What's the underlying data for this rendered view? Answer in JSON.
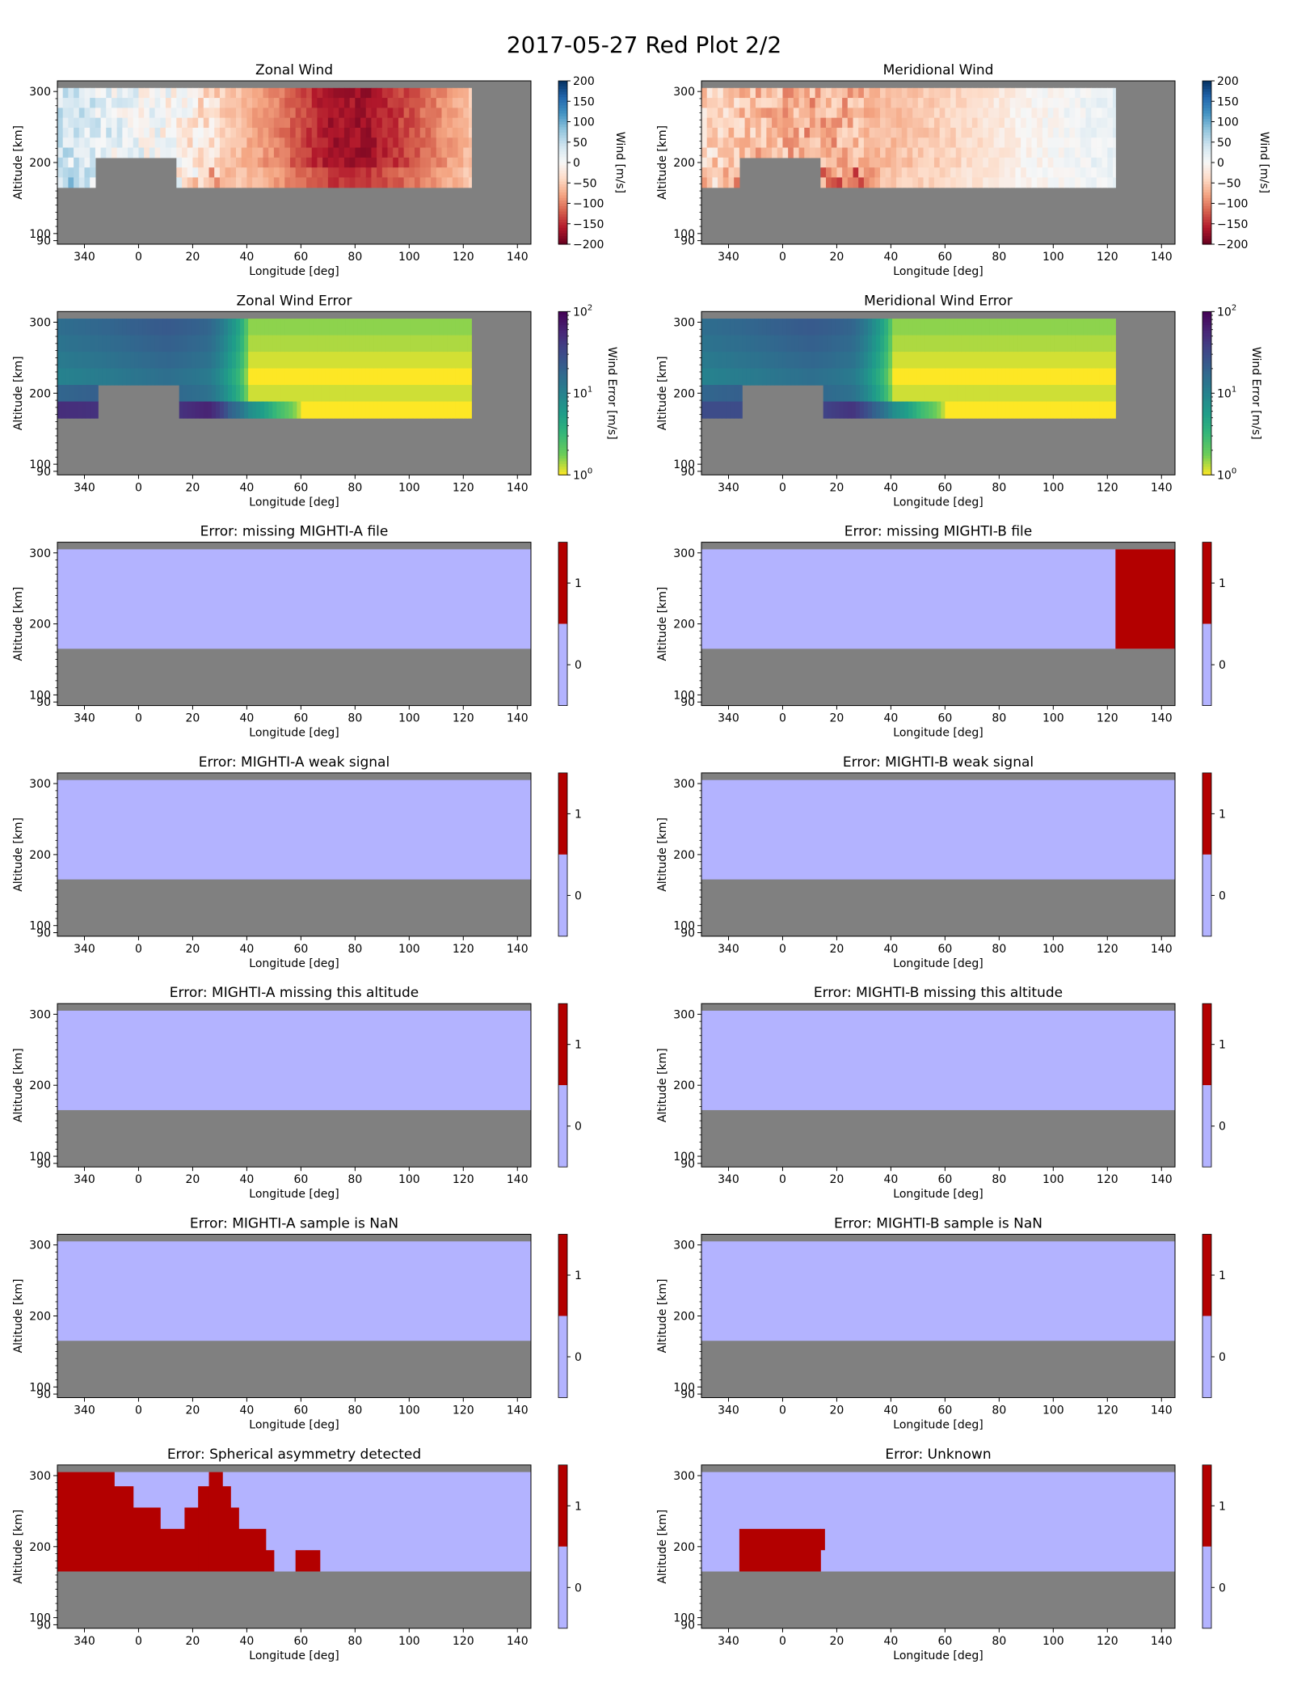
{
  "figure": {
    "title": "2017-05-27 Red Plot 2/2",
    "colors": {
      "background_gray": "#808080",
      "flag_off": "#b3b3ff",
      "flag_on": "#b30000",
      "wind_neg_extreme": "#67001f",
      "wind_pos_extreme": "#053061",
      "error_low": "#fde725",
      "error_high": "#440154"
    }
  },
  "chart_data": [
    {
      "type": "heatmap",
      "title": "Zonal Wind",
      "xlabel": "Longitude [deg]",
      "ylabel": "Altitude [km]",
      "x_ticks": [
        "340",
        "0",
        "20",
        "40",
        "60",
        "80",
        "100",
        "120",
        "140"
      ],
      "y_ticks": [
        "300",
        "200",
        "100",
        "90"
      ],
      "xlim": [
        -30,
        145
      ],
      "ylim": [
        85,
        315
      ],
      "colorbar": {
        "label": "Wind [m/s]",
        "ticks": [
          "200",
          "150",
          "100",
          "50",
          "0",
          "−50",
          "−100",
          "−150",
          "−200"
        ],
        "range": [
          -200,
          200
        ],
        "colormap": "RdBu"
      },
      "data_region": {
        "lon": [
          -30,
          123
        ],
        "alt": [
          165,
          305
        ],
        "gap_lon": [
          -16,
          14
        ],
        "gap_alt_below": 220
      },
      "values_by_lon": {
        "lon": [
          -30,
          -10,
          10,
          30,
          50,
          70,
          85,
          100,
          115,
          123
        ],
        "wind": [
          40,
          20,
          0,
          -45,
          -95,
          -165,
          -170,
          -130,
          -85,
          -60
        ]
      },
      "alt_bins": [
        295,
        280,
        265,
        250,
        235,
        220,
        205,
        190,
        175,
        165
      ]
    },
    {
      "type": "heatmap",
      "title": "Meridional Wind",
      "xlabel": "Longitude [deg]",
      "ylabel": "Altitude [km]",
      "x_ticks": [
        "340",
        "0",
        "20",
        "40",
        "60",
        "80",
        "100",
        "120",
        "140"
      ],
      "y_ticks": [
        "300",
        "200",
        "100",
        "90"
      ],
      "xlim": [
        -30,
        145
      ],
      "ylim": [
        85,
        315
      ],
      "colorbar": {
        "label": "Wind [m/s]",
        "ticks": [
          "200",
          "150",
          "100",
          "50",
          "0",
          "−50",
          "−100",
          "−150",
          "−200"
        ],
        "range": [
          -200,
          200
        ],
        "colormap": "RdBu"
      },
      "data_region": {
        "lon": [
          -30,
          123
        ],
        "alt": [
          165,
          305
        ],
        "gap_lon": [
          -16,
          14
        ],
        "gap_alt_below": 220
      },
      "values_by_lon": {
        "lon": [
          -30,
          -10,
          10,
          30,
          50,
          70,
          85,
          100,
          115,
          123
        ],
        "wind": [
          -40,
          -60,
          -75,
          -70,
          -55,
          -35,
          -15,
          0,
          10,
          15
        ]
      },
      "alt_bins": [
        295,
        280,
        265,
        250,
        235,
        220,
        205,
        190,
        175,
        165
      ]
    },
    {
      "type": "heatmap",
      "title": "Zonal Wind Error",
      "xlabel": "Longitude [deg]",
      "ylabel": "Altitude [km]",
      "x_ticks": [
        "340",
        "0",
        "20",
        "40",
        "60",
        "80",
        "100",
        "120",
        "140"
      ],
      "y_ticks": [
        "300",
        "200",
        "100",
        "90"
      ],
      "xlim": [
        -30,
        145
      ],
      "ylim": [
        85,
        315
      ],
      "colorbar": {
        "label": "Wind Error [m/s]",
        "ticks_log": [
          {
            "base": "10",
            "exp": "2"
          },
          {
            "base": "10",
            "exp": "1"
          },
          {
            "base": "10",
            "exp": "0"
          }
        ],
        "range": [
          1,
          100
        ],
        "scale": "log",
        "colormap": "viridis_r"
      },
      "data_region": {
        "lon": [
          -30,
          123
        ],
        "alt": [
          165,
          305
        ],
        "gap_lon": [
          -16,
          14
        ],
        "gap_alt_below": 220
      },
      "values_by_lon": {
        "lon": [
          -30,
          -10,
          10,
          25,
          33,
          40,
          50,
          60
        ],
        "error_upper": [
          10,
          12,
          15,
          12,
          5,
          1,
          1,
          1
        ],
        "error_lower": [
          50,
          45,
          40,
          60,
          20,
          8,
          3,
          1
        ]
      }
    },
    {
      "type": "heatmap",
      "title": "Meridional Wind Error",
      "xlabel": "Longitude [deg]",
      "ylabel": "Altitude [km]",
      "x_ticks": [
        "340",
        "0",
        "20",
        "40",
        "60",
        "80",
        "100",
        "120",
        "140"
      ],
      "y_ticks": [
        "300",
        "200",
        "100",
        "90"
      ],
      "xlim": [
        -30,
        145
      ],
      "ylim": [
        85,
        315
      ],
      "colorbar": {
        "label": "Wind Error [m/s]",
        "ticks_log": [
          {
            "base": "10",
            "exp": "2"
          },
          {
            "base": "10",
            "exp": "1"
          },
          {
            "base": "10",
            "exp": "0"
          }
        ],
        "range": [
          1,
          100
        ],
        "scale": "log",
        "colormap": "viridis_r"
      },
      "data_region": {
        "lon": [
          -30,
          123
        ],
        "alt": [
          165,
          305
        ],
        "gap_lon": [
          -16,
          14
        ],
        "gap_alt_below": 220
      },
      "values_by_lon": {
        "lon": [
          -30,
          -10,
          10,
          25,
          33,
          40,
          50,
          60
        ],
        "error_upper": [
          10,
          12,
          15,
          12,
          5,
          1,
          1,
          1
        ],
        "error_lower": [
          30,
          30,
          30,
          45,
          20,
          8,
          3,
          1
        ]
      }
    },
    {
      "type": "heatmap",
      "title": "Error: missing MIGHTI-A file",
      "xlabel": "Longitude [deg]",
      "ylabel": "Altitude [km]",
      "x_ticks": [
        "340",
        "0",
        "20",
        "40",
        "60",
        "80",
        "100",
        "120",
        "140"
      ],
      "y_ticks": [
        "300",
        "200",
        "100",
        "90"
      ],
      "xlim": [
        -30,
        145
      ],
      "ylim": [
        85,
        315
      ],
      "colorbar": {
        "ticks": [
          "1",
          "0"
        ],
        "categories": [
          0,
          1
        ]
      },
      "valid_alt": [
        165,
        305
      ],
      "flag_regions": []
    },
    {
      "type": "heatmap",
      "title": "Error: missing MIGHTI-B file",
      "xlabel": "Longitude [deg]",
      "ylabel": "Altitude [km]",
      "x_ticks": [
        "340",
        "0",
        "20",
        "40",
        "60",
        "80",
        "100",
        "120",
        "140"
      ],
      "y_ticks": [
        "300",
        "200",
        "100",
        "90"
      ],
      "xlim": [
        -30,
        145
      ],
      "ylim": [
        85,
        315
      ],
      "colorbar": {
        "ticks": [
          "1",
          "0"
        ],
        "categories": [
          0,
          1
        ]
      },
      "valid_alt": [
        165,
        305
      ],
      "flag_regions": [
        {
          "lon": [
            123,
            145
          ],
          "alt": [
            165,
            305
          ]
        }
      ]
    },
    {
      "type": "heatmap",
      "title": "Error: MIGHTI-A weak signal",
      "xlabel": "Longitude [deg]",
      "ylabel": "Altitude [km]",
      "x_ticks": [
        "340",
        "0",
        "20",
        "40",
        "60",
        "80",
        "100",
        "120",
        "140"
      ],
      "y_ticks": [
        "300",
        "200",
        "100",
        "90"
      ],
      "xlim": [
        -30,
        145
      ],
      "ylim": [
        85,
        315
      ],
      "colorbar": {
        "ticks": [
          "1",
          "0"
        ],
        "categories": [
          0,
          1
        ]
      },
      "valid_alt": [
        165,
        305
      ],
      "flag_regions": []
    },
    {
      "type": "heatmap",
      "title": "Error: MIGHTI-B weak signal",
      "xlabel": "Longitude [deg]",
      "ylabel": "Altitude [km]",
      "x_ticks": [
        "340",
        "0",
        "20",
        "40",
        "60",
        "80",
        "100",
        "120",
        "140"
      ],
      "y_ticks": [
        "300",
        "200",
        "100",
        "90"
      ],
      "xlim": [
        -30,
        145
      ],
      "ylim": [
        85,
        315
      ],
      "colorbar": {
        "ticks": [
          "1",
          "0"
        ],
        "categories": [
          0,
          1
        ]
      },
      "valid_alt": [
        165,
        305
      ],
      "flag_regions": []
    },
    {
      "type": "heatmap",
      "title": "Error: MIGHTI-A missing this altitude",
      "xlabel": "Longitude [deg]",
      "ylabel": "Altitude [km]",
      "x_ticks": [
        "340",
        "0",
        "20",
        "40",
        "60",
        "80",
        "100",
        "120",
        "140"
      ],
      "y_ticks": [
        "300",
        "200",
        "100",
        "90"
      ],
      "xlim": [
        -30,
        145
      ],
      "ylim": [
        85,
        315
      ],
      "colorbar": {
        "ticks": [
          "1",
          "0"
        ],
        "categories": [
          0,
          1
        ]
      },
      "valid_alt": [
        165,
        305
      ],
      "flag_regions": []
    },
    {
      "type": "heatmap",
      "title": "Error: MIGHTI-B missing this altitude",
      "xlabel": "Longitude [deg]",
      "ylabel": "Altitude [km]",
      "x_ticks": [
        "340",
        "0",
        "20",
        "40",
        "60",
        "80",
        "100",
        "120",
        "140"
      ],
      "y_ticks": [
        "300",
        "200",
        "100",
        "90"
      ],
      "xlim": [
        -30,
        145
      ],
      "ylim": [
        85,
        315
      ],
      "colorbar": {
        "ticks": [
          "1",
          "0"
        ],
        "categories": [
          0,
          1
        ]
      },
      "valid_alt": [
        165,
        305
      ],
      "flag_regions": []
    },
    {
      "type": "heatmap",
      "title": "Error: MIGHTI-A sample is NaN",
      "xlabel": "Longitude [deg]",
      "ylabel": "Altitude [km]",
      "x_ticks": [
        "340",
        "0",
        "20",
        "40",
        "60",
        "80",
        "100",
        "120",
        "140"
      ],
      "y_ticks": [
        "300",
        "200",
        "100",
        "90"
      ],
      "xlim": [
        -30,
        145
      ],
      "ylim": [
        85,
        315
      ],
      "colorbar": {
        "ticks": [
          "1",
          "0"
        ],
        "categories": [
          0,
          1
        ]
      },
      "valid_alt": [
        165,
        305
      ],
      "flag_regions": []
    },
    {
      "type": "heatmap",
      "title": "Error: MIGHTI-B sample is NaN",
      "xlabel": "Longitude [deg]",
      "ylabel": "Altitude [km]",
      "x_ticks": [
        "340",
        "0",
        "20",
        "40",
        "60",
        "80",
        "100",
        "120",
        "140"
      ],
      "y_ticks": [
        "300",
        "200",
        "100",
        "90"
      ],
      "xlim": [
        -30,
        145
      ],
      "ylim": [
        85,
        315
      ],
      "colorbar": {
        "ticks": [
          "1",
          "0"
        ],
        "categories": [
          0,
          1
        ]
      },
      "valid_alt": [
        165,
        305
      ],
      "flag_regions": []
    },
    {
      "type": "heatmap",
      "title": "Error: Spherical asymmetry detected",
      "xlabel": "Longitude [deg]",
      "ylabel": "Altitude [km]",
      "x_ticks": [
        "340",
        "0",
        "20",
        "40",
        "60",
        "80",
        "100",
        "120",
        "140"
      ],
      "y_ticks": [
        "300",
        "200",
        "100",
        "90"
      ],
      "xlim": [
        -30,
        145
      ],
      "ylim": [
        85,
        315
      ],
      "colorbar": {
        "ticks": [
          "1",
          "0"
        ],
        "categories": [
          0,
          1
        ]
      },
      "valid_alt": [
        165,
        305
      ],
      "flag_regions": [
        {
          "lon": [
            -30,
            -20
          ],
          "alt": [
            165,
            305
          ]
        },
        {
          "lon": [
            -20,
            -9
          ],
          "alt": [
            165,
            305
          ]
        },
        {
          "lon": [
            -9,
            -2
          ],
          "alt": [
            165,
            285
          ]
        },
        {
          "lon": [
            -2,
            8
          ],
          "alt": [
            165,
            255
          ]
        },
        {
          "lon": [
            8,
            17
          ],
          "alt": [
            165,
            225
          ]
        },
        {
          "lon": [
            17,
            22
          ],
          "alt": [
            165,
            255
          ]
        },
        {
          "lon": [
            22,
            26
          ],
          "alt": [
            165,
            285
          ]
        },
        {
          "lon": [
            26,
            31
          ],
          "alt": [
            165,
            305
          ]
        },
        {
          "lon": [
            31,
            34
          ],
          "alt": [
            165,
            285
          ]
        },
        {
          "lon": [
            34,
            37
          ],
          "alt": [
            165,
            255
          ]
        },
        {
          "lon": [
            37,
            47
          ],
          "alt": [
            165,
            225
          ]
        },
        {
          "lon": [
            47,
            50
          ],
          "alt": [
            165,
            195
          ]
        },
        {
          "lon": [
            58,
            67
          ],
          "alt": [
            165,
            195
          ]
        }
      ]
    },
    {
      "type": "heatmap",
      "title": "Error: Unknown",
      "xlabel": "Longitude [deg]",
      "ylabel": "Altitude [km]",
      "x_ticks": [
        "340",
        "0",
        "20",
        "40",
        "60",
        "80",
        "100",
        "120",
        "140"
      ],
      "y_ticks": [
        "300",
        "200",
        "100",
        "90"
      ],
      "xlim": [
        -30,
        145
      ],
      "ylim": [
        85,
        315
      ],
      "colorbar": {
        "ticks": [
          "1",
          "0"
        ],
        "categories": [
          0,
          1
        ]
      },
      "valid_alt": [
        165,
        305
      ],
      "flag_regions": [
        {
          "lon": [
            -16,
            14
          ],
          "alt": [
            165,
            225
          ]
        },
        {
          "lon": [
            14,
            15.5
          ],
          "alt": [
            195,
            225
          ]
        }
      ]
    }
  ]
}
